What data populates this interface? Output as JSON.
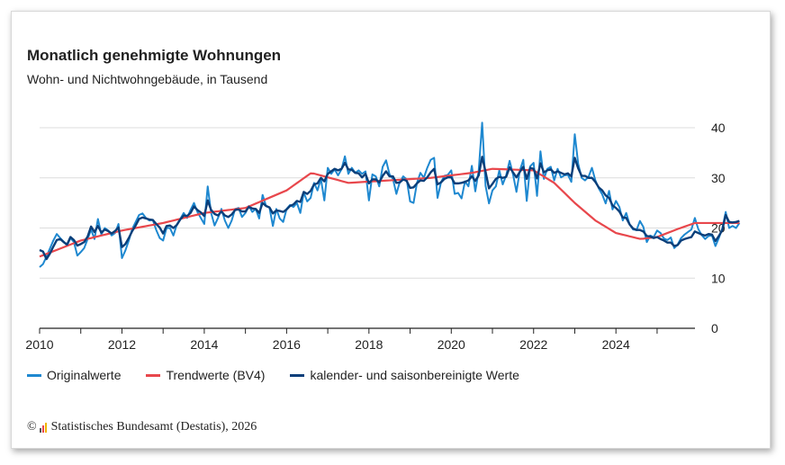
{
  "chart_data": {
    "type": "line",
    "title": "Monatlich genehmigte Wohnungen",
    "subtitle": "Wohn- und Nichtwohngebäude, in Tausend",
    "xlabel": "",
    "ylabel": "",
    "xlim": [
      2010,
      2025.92
    ],
    "ylim": [
      0,
      40
    ],
    "x_ticks": [
      "2010",
      "2012",
      "2014",
      "2016",
      "2018",
      "2020",
      "2022",
      "2024"
    ],
    "y_ticks": [
      "0",
      "10",
      "20",
      "30",
      "40"
    ],
    "grid": true,
    "legend_position": "bottom",
    "colors": {
      "original": "#1e88d0",
      "trend": "#e8474c",
      "adjusted": "#0b3f7a"
    },
    "trend_anchors": {
      "x": [
        2010.0,
        2011.0,
        2012.0,
        2013.0,
        2014.0,
        2015.0,
        2016.0,
        2016.6,
        2017.5,
        2018.5,
        2019.5,
        2020.5,
        2021.0,
        2022.0,
        2022.5,
        2023.0,
        2023.5,
        2024.0,
        2024.6,
        2025.0,
        2025.5,
        2025.92
      ],
      "y": [
        14.3,
        17.5,
        19.5,
        21.0,
        23.0,
        24.0,
        27.5,
        31.0,
        29.0,
        29.5,
        30.0,
        31.0,
        31.8,
        31.5,
        29.0,
        25.0,
        21.5,
        19.0,
        17.8,
        18.2,
        19.8,
        21.0
      ]
    },
    "series": [
      {
        "name": "Originalwerte",
        "x_start": 2010,
        "step": "monthly",
        "values": [
          12.2,
          12.8,
          14.3,
          15.9,
          17.5,
          18.8,
          18.0,
          17.3,
          16.5,
          18.0,
          17.2,
          14.5,
          15.2,
          16.0,
          17.8,
          19.7,
          17.8,
          21.8,
          18.7,
          20.0,
          19.5,
          18.5,
          19.0,
          20.8,
          14.0,
          15.5,
          17.5,
          19.8,
          21.2,
          22.6,
          22.9,
          22.0,
          21.5,
          21.6,
          19.6,
          18.0,
          17.5,
          20.0,
          20.0,
          18.5,
          20.7,
          21.8,
          23.0,
          22.0,
          23.6,
          25.0,
          23.2,
          22.0,
          20.8,
          28.3,
          23.0,
          20.5,
          22.0,
          23.8,
          21.5,
          20.0,
          21.5,
          23.8,
          24.0,
          22.2,
          23.0,
          24.4,
          23.2,
          23.8,
          21.9,
          26.6,
          24.4,
          24.1,
          20.4,
          23.8,
          21.9,
          21.2,
          23.8,
          24.6,
          24.2,
          25.0,
          23.0,
          27.1,
          25.3,
          26.0,
          29.0,
          27.5,
          29.8,
          25.5,
          32.0,
          30.8,
          31.7,
          30.5,
          31.7,
          34.3,
          30.8,
          32.0,
          31.0,
          31.5,
          30.8,
          31.3,
          25.5,
          30.7,
          30.3,
          28.3,
          32.2,
          33.5,
          30.7,
          29.8,
          26.8,
          29.2,
          30.3,
          29.7,
          25.3,
          25.0,
          29.0,
          31.0,
          30.0,
          32.0,
          33.6,
          34.0,
          26.0,
          29.1,
          30.4,
          30.6,
          31.5,
          26.8,
          27.0,
          25.9,
          29.3,
          28.3,
          32.4,
          27.3,
          31.5,
          41.0,
          28.4,
          24.9,
          27.5,
          28.3,
          31.5,
          28.7,
          30.5,
          33.4,
          30.7,
          27.2,
          31.5,
          33.6,
          25.4,
          32.3,
          33.0,
          26.4,
          35.3,
          29.8,
          31.8,
          32.2,
          29.5,
          31.8,
          30.1,
          30.5,
          30.6,
          29.2,
          38.7,
          32.8,
          30.0,
          29.5,
          30.2,
          32.0,
          29.5,
          27.9,
          26.7,
          24.9,
          27.4,
          23.7,
          25.4,
          24.2,
          21.5,
          23.0,
          20.7,
          19.7,
          19.6,
          21.4,
          20.2,
          17.2,
          18.5,
          18.2,
          19.5,
          19.0,
          17.9,
          17.6,
          18.1,
          16.0,
          16.7,
          18.0,
          18.7,
          19.2,
          19.7,
          22.0,
          19.8,
          18.6,
          17.8,
          18.4,
          18.5,
          16.4,
          18.0,
          19.9,
          23.2,
          20.0,
          20.4,
          20.0,
          21.0
        ]
      },
      {
        "name": "Trendwerte (BV4)",
        "x_start": 2010,
        "step": "monthly",
        "values": []
      },
      {
        "name": "kalender- und saisonbereinigte Werte",
        "x_start": 2010,
        "step": "monthly",
        "values": [
          15.6,
          15.3,
          13.8,
          14.9,
          16.3,
          17.6,
          17.8,
          17.2,
          16.7,
          18.2,
          17.6,
          16.5,
          16.8,
          17.2,
          18.3,
          20.3,
          19.2,
          20.4,
          19.1,
          19.7,
          19.4,
          18.9,
          19.4,
          20.1,
          16.2,
          16.8,
          18.0,
          19.4,
          20.5,
          21.8,
          22.1,
          21.9,
          21.7,
          21.6,
          20.8,
          20.1,
          18.9,
          20.4,
          20.5,
          20.0,
          20.6,
          21.7,
          22.5,
          22.4,
          23.0,
          24.3,
          23.6,
          23.1,
          22.4,
          25.5,
          23.6,
          22.8,
          22.5,
          23.3,
          22.5,
          22.2,
          22.7,
          23.6,
          23.7,
          23.3,
          23.3,
          24.2,
          23.9,
          23.8,
          23.0,
          25.0,
          24.4,
          24.1,
          22.9,
          23.5,
          23.4,
          23.2,
          23.7,
          24.4,
          24.7,
          25.4,
          25.2,
          27.2,
          26.8,
          27.4,
          28.7,
          28.9,
          30.0,
          29.3,
          30.8,
          31.3,
          31.8,
          31.5,
          31.8,
          33.0,
          31.7,
          31.6,
          31.0,
          30.9,
          30.1,
          30.8,
          28.9,
          29.7,
          29.7,
          29.1,
          30.4,
          31.3,
          30.3,
          30.3,
          29.0,
          29.1,
          29.7,
          29.4,
          28.0,
          28.1,
          28.9,
          29.5,
          29.4,
          30.1,
          31.1,
          31.8,
          28.7,
          29.1,
          29.8,
          30.1,
          30.1,
          28.9,
          28.9,
          29.0,
          29.2,
          29.5,
          30.3,
          29.4,
          30.5,
          34.2,
          31.2,
          27.9,
          28.8,
          29.8,
          30.2,
          30.0,
          30.2,
          32.1,
          31.1,
          30.1,
          31.2,
          32.2,
          29.8,
          32.0,
          31.8,
          29.9,
          32.9,
          31.1,
          31.5,
          31.7,
          31.0,
          31.3,
          31.0,
          30.7,
          30.9,
          30.3,
          34.0,
          31.9,
          30.4,
          30.4,
          30.0,
          30.0,
          29.2,
          28.1,
          27.5,
          26.5,
          26.0,
          24.5,
          24.0,
          23.3,
          22.1,
          22.0,
          20.7,
          19.9,
          19.6,
          19.6,
          19.3,
          18.4,
          18.3,
          18.0,
          18.2,
          17.8,
          17.5,
          17.1,
          17.1,
          16.4,
          16.6,
          17.5,
          17.8,
          18.0,
          18.2,
          19.3,
          19.0,
          18.7,
          18.5,
          18.8,
          18.7,
          17.4,
          18.4,
          19.6,
          22.6,
          21.2,
          21.1,
          21.2,
          21.4
        ]
      }
    ]
  },
  "legend": {
    "original": "Originalwerte",
    "trend": "Trendwerte (BV4)",
    "adjusted": "kalender- und saisonbereinigte Werte"
  },
  "footer": {
    "copyright": "©",
    "source": "Statistisches Bundesamt (Destatis), 2026"
  }
}
